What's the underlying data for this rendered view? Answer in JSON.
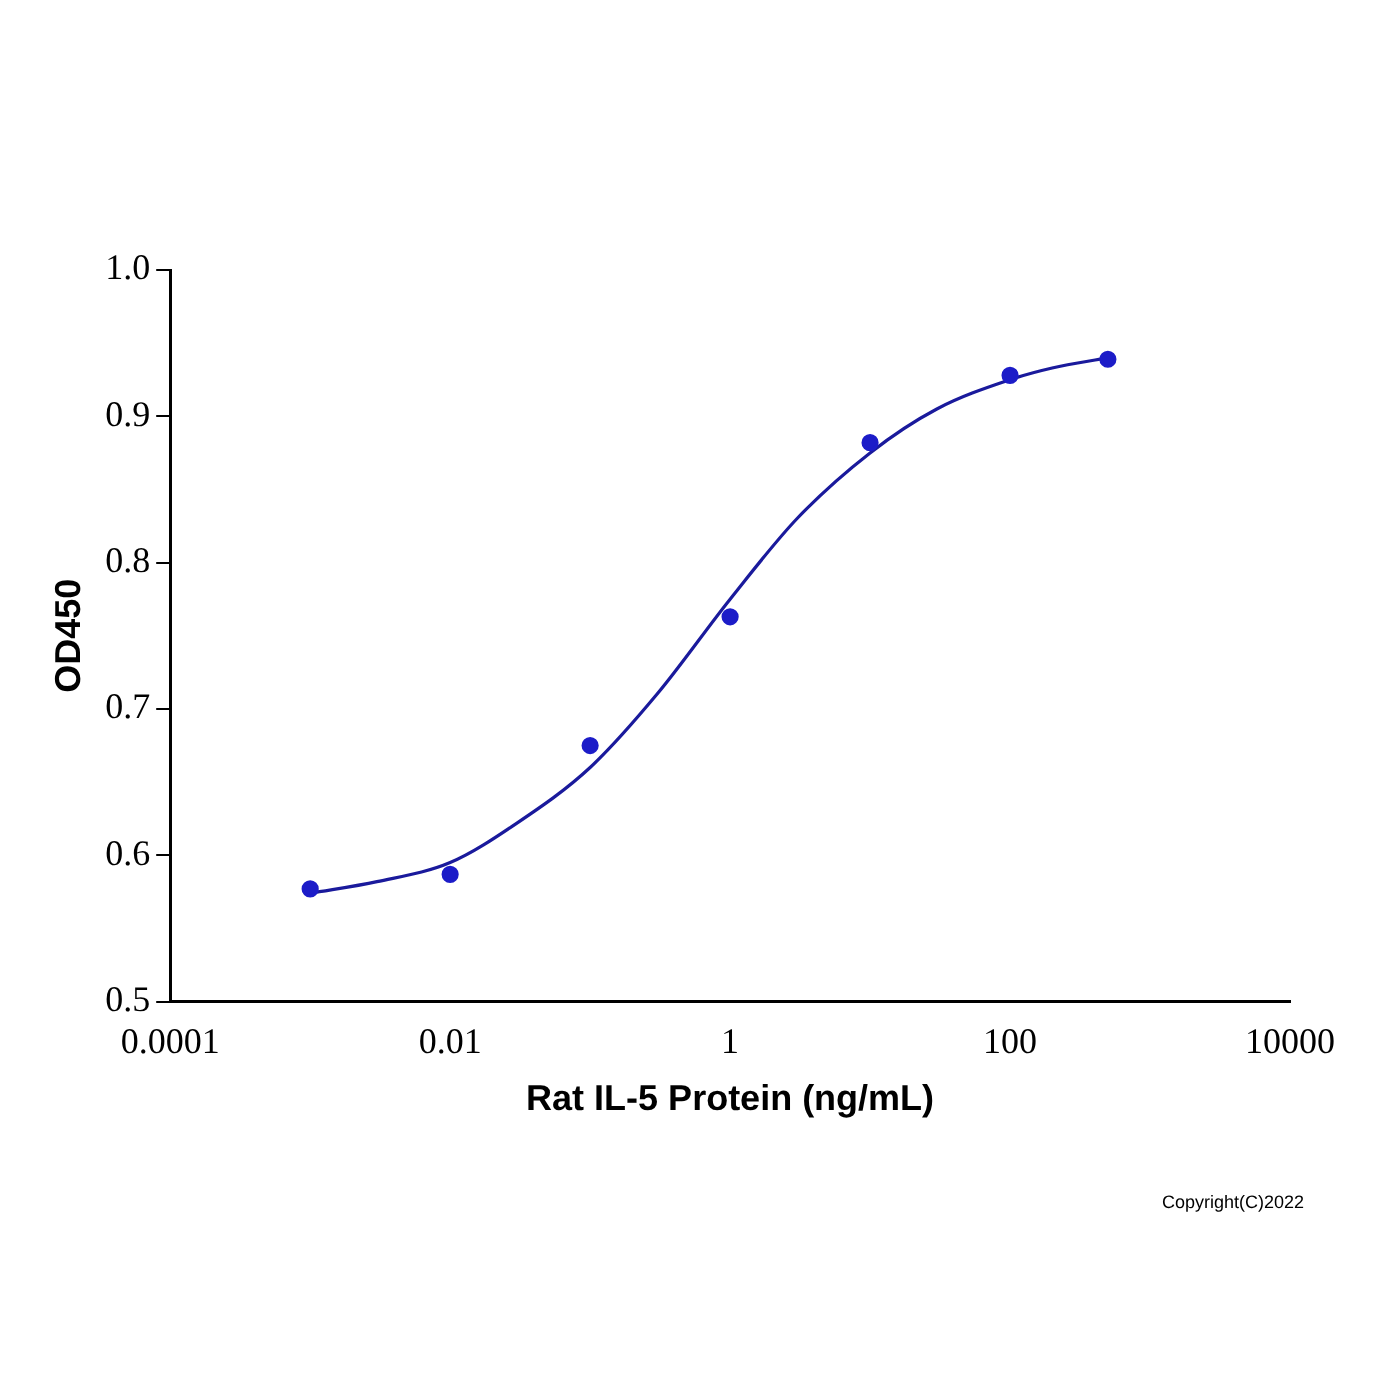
{
  "chart_data": {
    "type": "scatter",
    "xlabel": "Rat IL-5 Protein (ng/mL)",
    "ylabel": "OD450",
    "log": "x",
    "xlim": [
      0.0001,
      10000
    ],
    "xticks": [
      0.0001,
      0.01,
      1,
      100,
      10000
    ],
    "ylim": [
      0.5,
      1.0
    ],
    "yticks": [
      {
        "value": 0.5,
        "label": "0.5"
      },
      {
        "value": 0.6,
        "label": "0.6"
      },
      {
        "value": 0.7,
        "label": "0.7"
      },
      {
        "value": 0.8,
        "label": "0.8"
      },
      {
        "value": 0.9,
        "label": "0.9"
      },
      {
        "value": 1.0,
        "label": "1.0"
      }
    ],
    "grid": false,
    "legend": false,
    "series": [
      {
        "color": "#1c1cc8",
        "marker": "circle",
        "x": [
          0.001,
          0.01,
          0.1,
          1,
          10,
          100,
          500
        ],
        "values": [
          0.577,
          0.587,
          0.675,
          0.763,
          0.882,
          0.928,
          0.939
        ]
      },
      {
        "type": "line",
        "color": "#1a1a9c",
        "marker": "none",
        "line_style": "solid",
        "x": [
          0.001,
          0.003,
          0.01,
          0.03,
          0.1,
          0.3,
          1,
          3,
          10,
          30,
          100,
          200,
          500
        ],
        "values": [
          0.574,
          0.582,
          0.595,
          0.622,
          0.66,
          0.71,
          0.775,
          0.83,
          0.875,
          0.905,
          0.925,
          0.933,
          0.94
        ]
      }
    ],
    "annotations": [
      "Copyright(C)2022"
    ]
  }
}
